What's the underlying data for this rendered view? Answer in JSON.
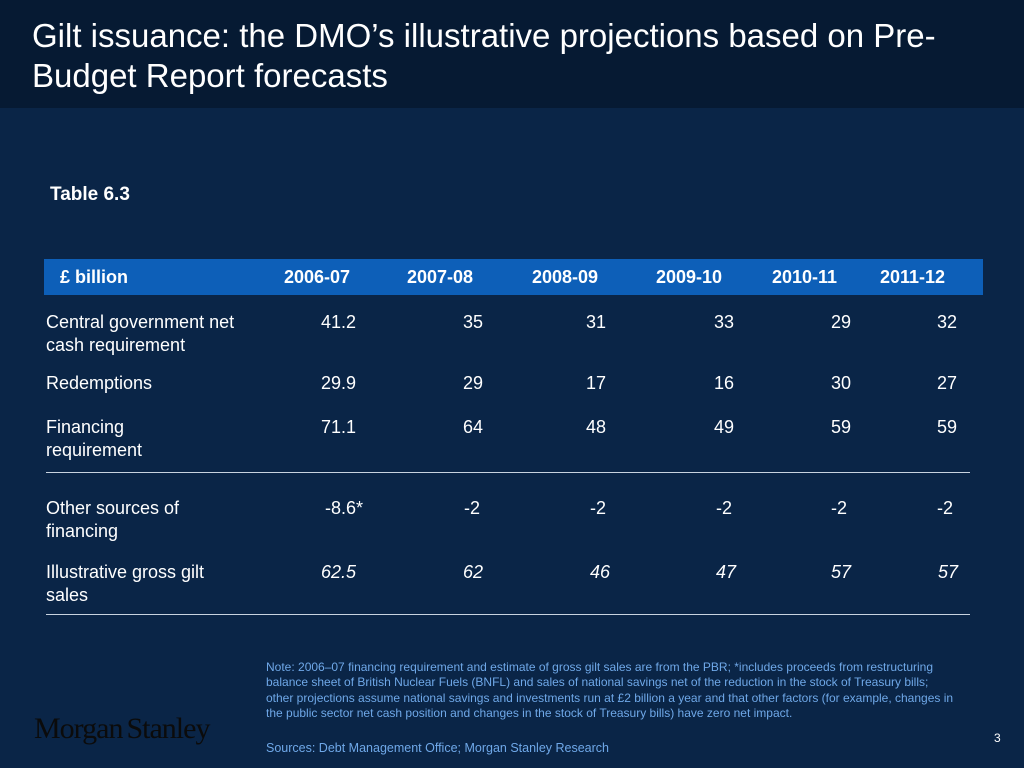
{
  "title": "Gilt issuance: the DMO’s illustrative projections based on Pre-Budget Report forecasts",
  "table_label": "Table 6.3",
  "table": {
    "unit": "£ billion",
    "columns": [
      "2006-07",
      "2007-08",
      "2008-09",
      "2009-10",
      "2010-11",
      "2011-12"
    ],
    "rows": [
      {
        "label": "Central government net cash requirement",
        "values": [
          "41.2",
          "35",
          "31",
          "33",
          "29",
          "32"
        ],
        "italic": false
      },
      {
        "label": "Redemptions",
        "values": [
          "29.9",
          "29",
          "17",
          "16",
          "30",
          "27"
        ],
        "italic": false
      },
      {
        "label": "Financing requirement",
        "values": [
          "71.1",
          "64",
          "48",
          "49",
          "59",
          "59"
        ],
        "italic": false
      },
      {
        "label": "Other sources of financing",
        "values": [
          "-8.6*",
          "-2",
          "-2",
          "-2",
          "-2",
          "-2"
        ],
        "italic": false
      },
      {
        "label": "Illustrative gross gilt sales",
        "values": [
          "62.5",
          "62",
          "46",
          "47",
          "57",
          "57"
        ],
        "italic": true
      }
    ]
  },
  "note": "Note: 2006–07 financing requirement and estimate of gross gilt sales are from the PBR; *includes proceeds from restructuring balance sheet of British Nuclear Fuels (BNFL) and sales of national savings net of the reduction in the stock of Treasury bills; other projections assume national savings and investments run at £2 billion a year and that other factors (for example, changes in the public sector net cash position and changes in the stock of Treasury bills) have zero net impact.",
  "source": "Sources: Debt Management Office; Morgan Stanley Research",
  "logo": {
    "part1": "Morgan",
    "part2": "Stanley"
  },
  "page_number": "3",
  "colors": {
    "background": "#0a2547",
    "title_bar": "#061a33",
    "header_band": "#0d5fb8",
    "note_text": "#6fa8e8"
  }
}
